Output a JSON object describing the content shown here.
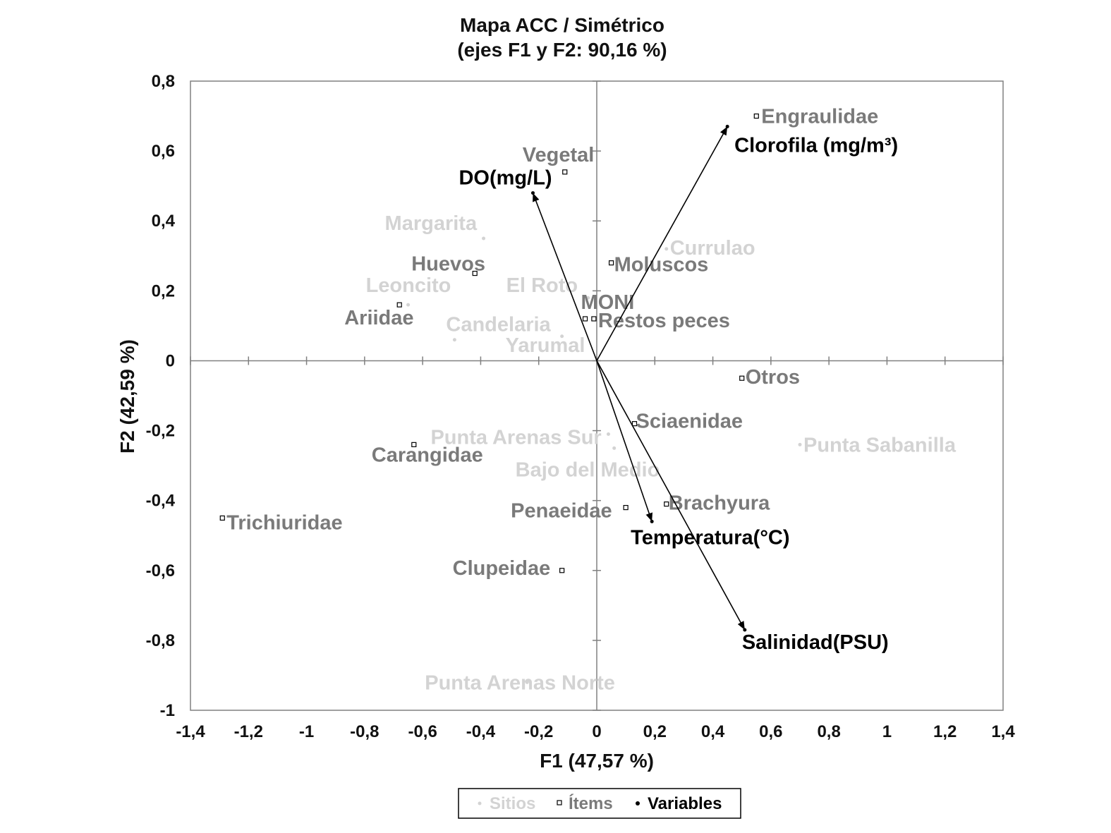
{
  "chart_data": {
    "type": "scatter",
    "title": "Mapa ACC / Simétrico",
    "subtitle": "(ejes F1 y F2: 90,16 %)",
    "xlabel": "F1 (47,57 %)",
    "ylabel": "F2 (42,59 %)",
    "xlim": [
      -1.4,
      1.4
    ],
    "ylim": [
      -1,
      0.8
    ],
    "x_ticks": [
      -1.4,
      -1.2,
      -1,
      -0.8,
      -0.6,
      -0.4,
      -0.2,
      0,
      0.2,
      0.4,
      0.6,
      0.8,
      1,
      1.2,
      1.4
    ],
    "x_tick_labels": [
      "-1,4",
      "-1,2",
      "-1",
      "-0,8",
      "-0,6",
      "-0,4",
      "-0,2",
      "0",
      "0,2",
      "0,4",
      "0,6",
      "0,8",
      "1",
      "1,2",
      "1,4"
    ],
    "y_ticks": [
      -1,
      -0.8,
      -0.6,
      -0.4,
      -0.2,
      0,
      0.2,
      0.4,
      0.6,
      0.8
    ],
    "y_tick_labels": [
      "-1",
      "-0,8",
      "-0,6",
      "-0,4",
      "-0,2",
      "0",
      "0,2",
      "0,4",
      "0,6",
      "0,8"
    ],
    "colors": {
      "sitios": "#d3d3d3",
      "items": "#7a7a7a",
      "variables": "#000000",
      "frame": "#808080"
    },
    "series": [
      {
        "name": "Sitios",
        "marker": "dot",
        "points": [
          {
            "label": "Margarita",
            "x": -0.39,
            "y": 0.35
          },
          {
            "label": "Currulao",
            "x": 0.24,
            "y": 0.32
          },
          {
            "label": "Leoncito",
            "x": -0.65,
            "y": 0.16
          },
          {
            "label": "El Roto",
            "x": -0.03,
            "y": 0.18
          },
          {
            "label": "Candelaria",
            "x": -0.49,
            "y": 0.06
          },
          {
            "label": "Yarumal",
            "x": -0.12,
            "y": 0.07
          },
          {
            "label": "Punta Arenas Sur",
            "x": 0.04,
            "y": -0.21
          },
          {
            "label": "Bajo del Medio",
            "x": 0.06,
            "y": -0.25
          },
          {
            "label": "Punta Sabanilla",
            "x": 0.7,
            "y": -0.24
          },
          {
            "label": "Punta Arenas Norte",
            "x": -0.24,
            "y": -0.92
          }
        ]
      },
      {
        "name": "Ítems",
        "marker": "square",
        "points": [
          {
            "label": "Engraulidae",
            "x": 0.55,
            "y": 0.7
          },
          {
            "label": "Vegetal",
            "x": -0.11,
            "y": 0.54
          },
          {
            "label": "Huevos",
            "x": -0.42,
            "y": 0.25
          },
          {
            "label": "Moluscos",
            "x": 0.05,
            "y": 0.28
          },
          {
            "label": "Ariidae",
            "x": -0.68,
            "y": 0.16
          },
          {
            "label": "MONI",
            "x": -0.04,
            "y": 0.12
          },
          {
            "label": "Restos peces",
            "x": -0.01,
            "y": 0.12
          },
          {
            "label": "Otros",
            "x": 0.5,
            "y": -0.05
          },
          {
            "label": "Sciaenidae",
            "x": 0.13,
            "y": -0.18
          },
          {
            "label": "Carangidae",
            "x": -0.63,
            "y": -0.24
          },
          {
            "label": "Brachyura",
            "x": 0.24,
            "y": -0.41
          },
          {
            "label": "Penaeidae",
            "x": 0.1,
            "y": -0.42
          },
          {
            "label": "Trichiuridae",
            "x": -1.29,
            "y": -0.45
          },
          {
            "label": "Clupeidae",
            "x": -0.12,
            "y": -0.6
          }
        ]
      },
      {
        "name": "Variables",
        "marker": "arrow",
        "points": [
          {
            "label": "Clorofila (mg/m³)",
            "x": 0.45,
            "y": 0.67
          },
          {
            "label": "DO(mg/L)",
            "x": -0.22,
            "y": 0.48
          },
          {
            "label": "Temperatura(°C)",
            "x": 0.19,
            "y": -0.46
          },
          {
            "label": "Salinidad(PSU)",
            "x": 0.51,
            "y": -0.77
          }
        ]
      }
    ],
    "legend": {
      "position": "bottom-center",
      "entries": [
        "Sitios",
        "Ítems",
        "Variables"
      ]
    }
  }
}
